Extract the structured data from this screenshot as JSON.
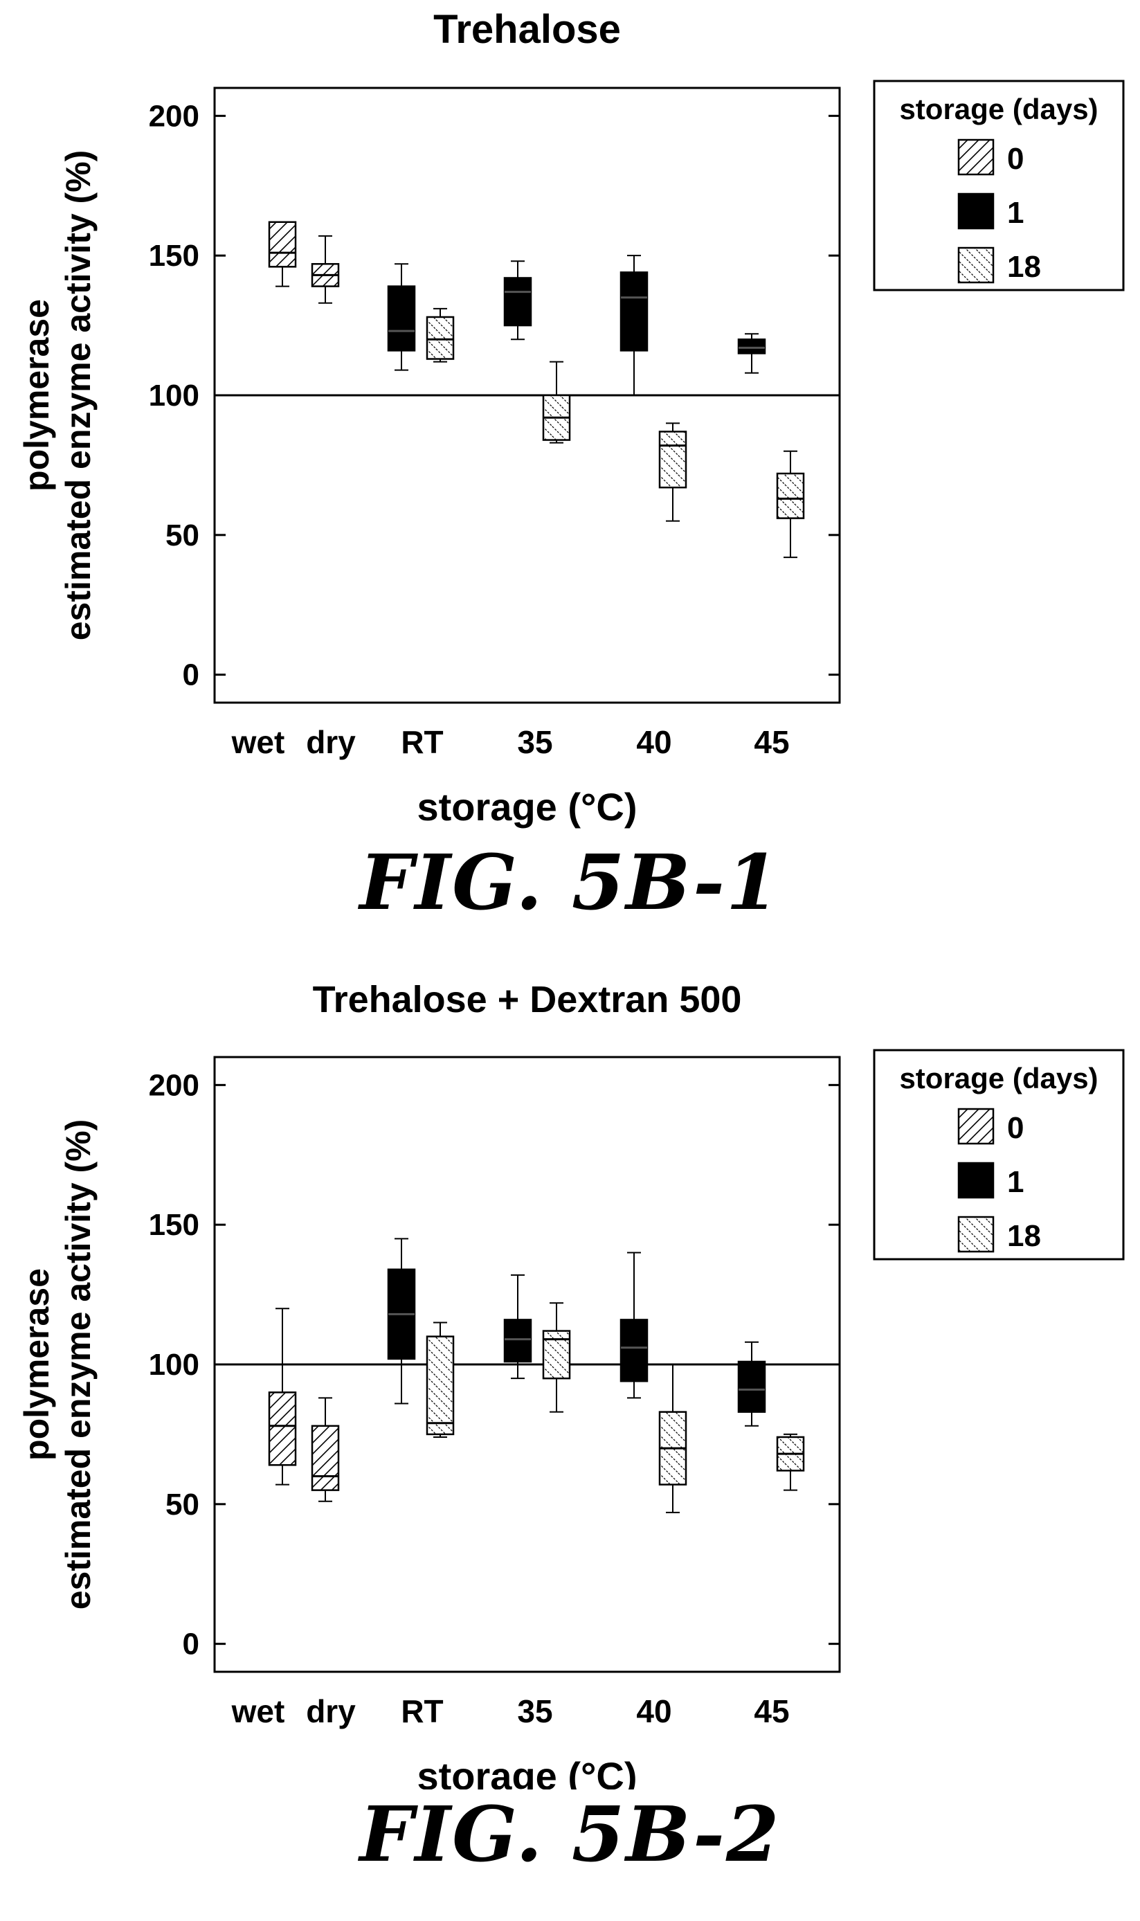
{
  "figures": [
    {
      "label": "FIG. 5B-1"
    },
    {
      "label": "FIG. 5B-2"
    }
  ],
  "chart_data": [
    {
      "type": "box",
      "title": "Trehalose",
      "ylabel": "polymerase\nestimated enzyme activity (%)",
      "xlabel": "storage (°C)",
      "ylim": [
        -10,
        210
      ],
      "yticks": [
        0,
        50,
        100,
        150,
        200
      ],
      "reference_line": 100,
      "xticks": [
        "wet",
        "dry",
        "RT",
        "35",
        "40",
        "45"
      ],
      "legend": {
        "title": "storage (days)",
        "entries": [
          "0",
          "1",
          "18"
        ],
        "position": "right"
      },
      "groups": [
        {
          "x": "wet",
          "storage_days": "0",
          "min": 139,
          "q1": 146,
          "median": 151,
          "q3": 162,
          "max": 162
        },
        {
          "x": "dry",
          "storage_days": "0",
          "min": 133,
          "q1": 139,
          "median": 143,
          "q3": 147,
          "max": 157
        },
        {
          "x": "RT",
          "storage_days": "1",
          "min": 109,
          "q1": 116,
          "median": 123,
          "q3": 139,
          "max": 147
        },
        {
          "x": "RT",
          "storage_days": "18",
          "min": 112,
          "q1": 113,
          "median": 120,
          "q3": 128,
          "max": 131
        },
        {
          "x": "35",
          "storage_days": "1",
          "min": 120,
          "q1": 125,
          "median": 137,
          "q3": 142,
          "max": 148
        },
        {
          "x": "35",
          "storage_days": "18",
          "min": 83,
          "q1": 84,
          "median": 92,
          "q3": 100,
          "max": 112
        },
        {
          "x": "40",
          "storage_days": "1",
          "min": 100,
          "q1": 116,
          "median": 135,
          "q3": 144,
          "max": 150
        },
        {
          "x": "40",
          "storage_days": "18",
          "min": 55,
          "q1": 67,
          "median": 82,
          "q3": 87,
          "max": 90
        },
        {
          "x": "45",
          "storage_days": "1",
          "min": 108,
          "q1": 115,
          "median": 117,
          "q3": 120,
          "max": 122
        },
        {
          "x": "45",
          "storage_days": "18",
          "min": 42,
          "q1": 56,
          "median": 63,
          "q3": 72,
          "max": 80
        }
      ]
    },
    {
      "type": "box",
      "title": "Trehalose + Dextran 500",
      "ylabel": "polymerase\nestimated enzyme activity (%)",
      "xlabel": "storage (°C)",
      "ylim": [
        -10,
        210
      ],
      "yticks": [
        0,
        50,
        100,
        150,
        200
      ],
      "reference_line": 100,
      "xticks": [
        "wet",
        "dry",
        "RT",
        "35",
        "40",
        "45"
      ],
      "legend": {
        "title": "storage (days)",
        "entries": [
          "0",
          "1",
          "18"
        ],
        "position": "right"
      },
      "groups": [
        {
          "x": "wet",
          "storage_days": "0",
          "min": 57,
          "q1": 64,
          "median": 78,
          "q3": 90,
          "max": 120
        },
        {
          "x": "dry",
          "storage_days": "0",
          "min": 51,
          "q1": 55,
          "median": 60,
          "q3": 78,
          "max": 88
        },
        {
          "x": "RT",
          "storage_days": "1",
          "min": 86,
          "q1": 102,
          "median": 118,
          "q3": 134,
          "max": 145
        },
        {
          "x": "RT",
          "storage_days": "18",
          "min": 74,
          "q1": 75,
          "median": 79,
          "q3": 110,
          "max": 115
        },
        {
          "x": "35",
          "storage_days": "1",
          "min": 95,
          "q1": 101,
          "median": 109,
          "q3": 116,
          "max": 132
        },
        {
          "x": "35",
          "storage_days": "18",
          "min": 83,
          "q1": 95,
          "median": 109,
          "q3": 112,
          "max": 122
        },
        {
          "x": "40",
          "storage_days": "1",
          "min": 88,
          "q1": 94,
          "median": 106,
          "q3": 116,
          "max": 140
        },
        {
          "x": "40",
          "storage_days": "18",
          "min": 47,
          "q1": 57,
          "median": 70,
          "q3": 83,
          "max": 100
        },
        {
          "x": "45",
          "storage_days": "1",
          "min": 78,
          "q1": 83,
          "median": 91,
          "q3": 101,
          "max": 108
        },
        {
          "x": "45",
          "storage_days": "18",
          "min": 55,
          "q1": 62,
          "median": 68,
          "q3": 74,
          "max": 75
        }
      ]
    }
  ]
}
